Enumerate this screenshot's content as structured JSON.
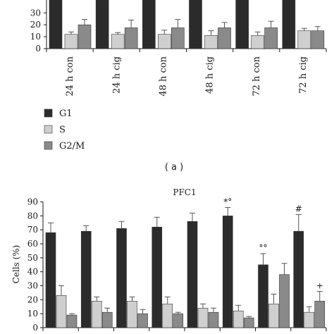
{
  "colors": {
    "G1": "#2b2b2b",
    "S": "#cfcfcf",
    "G2M": "#8a8a8a",
    "axis": "#1a1a1a",
    "error": "#555555"
  },
  "caption_a": "( a )",
  "chart_data": [
    {
      "type": "bar",
      "title": "",
      "xlabel": "",
      "ylabel": "",
      "ylim": [
        0,
        35
      ],
      "yticks_visible": [
        0,
        10,
        20,
        30
      ],
      "categories": [
        "24 h con",
        "24 h cig",
        "48 h con",
        "48 h cig",
        "72 h con",
        "72 h cig"
      ],
      "legend_position": "bottom-left",
      "series": [
        {
          "name": "G1",
          "values": [
            70,
            70,
            70,
            70,
            70,
            70
          ],
          "errors": [
            0,
            0,
            0,
            0,
            0,
            0
          ]
        },
        {
          "name": "S",
          "values": [
            12,
            12,
            12,
            11,
            11,
            15
          ],
          "errors": [
            2,
            1.5,
            3.5,
            4,
            3,
            2
          ]
        },
        {
          "name": "G2/M",
          "values": [
            20,
            17.5,
            17.5,
            17.5,
            17.5,
            15
          ],
          "errors": [
            4.5,
            6.5,
            7,
            4.5,
            5.5,
            3.5
          ]
        }
      ]
    },
    {
      "type": "bar",
      "title": "PFC1",
      "xlabel": "",
      "ylabel": "Cells (%)",
      "ylim": [
        0,
        90
      ],
      "yticks": [
        0,
        10,
        20,
        30,
        40,
        50,
        60,
        70,
        80,
        90
      ],
      "series_order": [
        "G1",
        "S",
        "G2/M"
      ],
      "groups": [
        {
          "values": [
            68,
            23,
            9
          ],
          "errors": [
            7,
            7,
            1
          ],
          "marks": [
            "",
            "",
            ""
          ]
        },
        {
          "values": [
            69,
            19,
            11
          ],
          "errors": [
            4,
            3,
            3
          ],
          "marks": [
            "",
            "",
            ""
          ]
        },
        {
          "values": [
            71,
            19,
            10
          ],
          "errors": [
            5,
            3,
            3
          ],
          "marks": [
            "",
            "",
            ""
          ]
        },
        {
          "values": [
            72,
            17,
            10
          ],
          "errors": [
            7,
            5,
            1
          ],
          "marks": [
            "",
            "",
            ""
          ]
        },
        {
          "values": [
            76,
            14,
            11
          ],
          "errors": [
            6,
            3,
            3
          ],
          "marks": [
            "",
            "",
            ""
          ]
        },
        {
          "values": [
            80,
            12,
            7
          ],
          "errors": [
            6,
            4,
            1
          ],
          "marks": [
            "*°",
            "",
            ""
          ]
        },
        {
          "values": [
            45,
            17,
            38
          ],
          "errors": [
            8,
            7,
            8
          ],
          "marks": [
            "°°",
            "",
            ""
          ]
        },
        {
          "values": [
            69,
            11,
            19
          ],
          "errors": [
            12,
            4,
            7
          ],
          "marks": [
            "#",
            "",
            "+"
          ]
        }
      ]
    }
  ]
}
